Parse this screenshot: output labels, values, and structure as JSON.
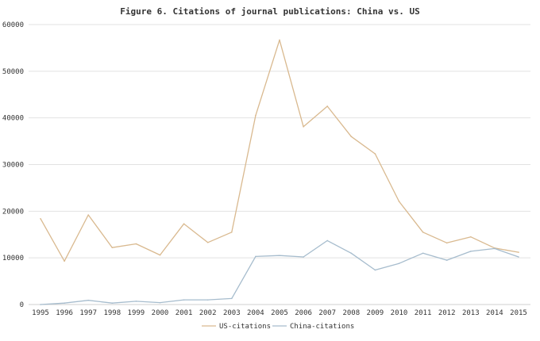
{
  "chart_data": {
    "type": "line",
    "title": "Figure 6. Citations of journal publications: China vs. US",
    "xlabel": "",
    "ylabel": "",
    "categories": [
      "1995",
      "1996",
      "1997",
      "1998",
      "1999",
      "2000",
      "2001",
      "2002",
      "2003",
      "2004",
      "2005",
      "2006",
      "2007",
      "2008",
      "2009",
      "2010",
      "2011",
      "2012",
      "2013",
      "2014",
      "2015"
    ],
    "ylim": [
      0,
      60000
    ],
    "yticks": [
      0,
      10000,
      20000,
      30000,
      40000,
      50000,
      60000
    ],
    "ytick_labels": [
      "0",
      "10000",
      "20000",
      "30000",
      "40000",
      "50000",
      "60000"
    ],
    "grid": true,
    "legend_position": "bottom",
    "series": [
      {
        "name": "US-citations",
        "color": "#d9b98f",
        "values": [
          18400,
          9300,
          19200,
          12200,
          13000,
          10600,
          17300,
          13300,
          15500,
          40500,
          56700,
          38100,
          42500,
          36000,
          32300,
          22100,
          15500,
          13200,
          14500,
          12100,
          11200
        ]
      },
      {
        "name": "China-citations",
        "color": "#a6bccd",
        "values": [
          0,
          300,
          900,
          300,
          700,
          400,
          1000,
          1000,
          1300,
          10300,
          10500,
          10200,
          13700,
          11000,
          7400,
          8800,
          11000,
          9500,
          11400,
          12000,
          10200
        ]
      }
    ]
  }
}
